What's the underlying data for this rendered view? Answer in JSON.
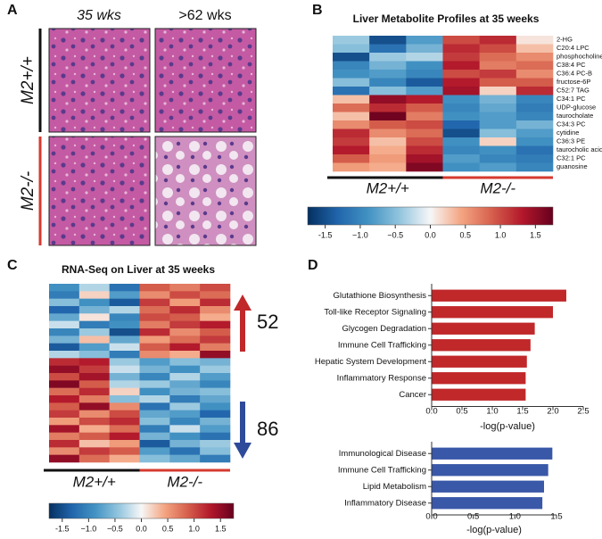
{
  "panel_a": {
    "label": "A",
    "columns": [
      "35 wks",
      ">62 wks"
    ],
    "rows": [
      {
        "name": "M2+/+",
        "color": "#111111"
      },
      {
        "name": "M2-/-",
        "color": "#d63a2f"
      }
    ]
  },
  "chart_data": [
    {
      "type": "heatmap",
      "label": "B",
      "title": "Liver Metabolite Profiles at 35 weeks",
      "rows": [
        "2-HG",
        "C20:4 LPC",
        "phosphocholine",
        "C38:4 PC",
        "C36:4 PC-B",
        "fructose-6P",
        "C52:7 TAG",
        "C34:1 PC",
        "UDP-glucose",
        "taurocholate",
        "C34:3 PC",
        "cytidine",
        "C36:3 PE",
        "taurocholic acid",
        "C32:1 PC",
        "guanosine"
      ],
      "groups": [
        {
          "name": "M2+/+",
          "color": "#111111"
        },
        {
          "name": "M2-/-",
          "color": "#d63a2f"
        }
      ],
      "values": [
        [
          -0.4,
          -1.5,
          -0.8,
          1.0,
          1.2,
          0.1
        ],
        [
          -0.5,
          -1.2,
          -0.6,
          1.2,
          1.0,
          0.3
        ],
        [
          -1.5,
          -0.4,
          -0.3,
          1.1,
          0.8,
          0.6
        ],
        [
          -1.0,
          -0.6,
          -0.9,
          1.3,
          0.7,
          0.8
        ],
        [
          -0.9,
          -0.8,
          -1.0,
          1.0,
          1.1,
          0.6
        ],
        [
          -0.5,
          -1.0,
          -1.4,
          1.3,
          0.9,
          0.9
        ],
        [
          -1.2,
          -0.5,
          -0.8,
          1.4,
          0.2,
          1.2
        ],
        [
          0.3,
          1.5,
          1.3,
          -0.9,
          -0.6,
          -1.0
        ],
        [
          0.8,
          1.2,
          0.9,
          -1.0,
          -0.7,
          -1.1
        ],
        [
          0.3,
          1.7,
          0.7,
          -0.9,
          -0.8,
          -1.0
        ],
        [
          0.6,
          0.9,
          1.0,
          -1.3,
          -0.8,
          -0.6
        ],
        [
          1.2,
          0.6,
          0.8,
          -1.5,
          -0.5,
          -0.8
        ],
        [
          1.1,
          0.3,
          1.0,
          -0.9,
          0.2,
          -0.9
        ],
        [
          1.3,
          0.4,
          1.2,
          -1.0,
          -0.9,
          -1.2
        ],
        [
          0.9,
          0.5,
          1.4,
          -0.8,
          -1.0,
          -1.1
        ],
        [
          0.5,
          0.4,
          1.6,
          -0.9,
          -0.8,
          -1.0
        ]
      ],
      "clim": [
        -1.75,
        1.75
      ],
      "colorbar_ticks": [
        -1.5,
        {
          "value": -1,
          "label": "−1.0"
        },
        {
          "value": -0.5,
          "label": "−0.5"
        },
        {
          "value": 0,
          "label": "0.0"
        },
        0.5,
        {
          "value": 1,
          "label": "1.0"
        },
        1.5
      ],
      "colors": [
        "#053061",
        "#2166ac",
        "#4393c3",
        "#92c5de",
        "#f7f7f7",
        "#f4a582",
        "#d6604d",
        "#b2182b",
        "#67001f"
      ]
    },
    {
      "type": "heatmap",
      "label": "C",
      "title": "RNA-Seq on Liver at 35 weeks",
      "groups": [
        {
          "name": "M2+/+",
          "color": "#111111"
        },
        {
          "name": "M2-/-",
          "color": "#d63a2f"
        }
      ],
      "annotations": [
        {
          "text": 52,
          "color": "#c0282a",
          "direction": "up"
        },
        {
          "text": 86,
          "color": "#2e4a9a",
          "direction": "down"
        }
      ],
      "values": [
        [
          -0.9,
          -0.3,
          -1.2,
          0.9,
          0.7,
          1.0
        ],
        [
          -1.1,
          0.2,
          -0.8,
          0.6,
          1.0,
          0.8
        ],
        [
          -0.5,
          -0.9,
          -1.4,
          1.1,
          0.5,
          1.2
        ],
        [
          -1.3,
          -0.6,
          -0.3,
          0.8,
          1.2,
          0.6
        ],
        [
          -0.7,
          0.1,
          -1.0,
          1.0,
          0.9,
          0.4
        ],
        [
          -0.2,
          -1.1,
          -0.9,
          0.7,
          1.1,
          1.3
        ],
        [
          -1.0,
          -0.4,
          -1.5,
          1.2,
          0.6,
          0.9
        ],
        [
          -0.6,
          0.3,
          -0.7,
          0.5,
          0.8,
          1.1
        ],
        [
          -1.4,
          -0.8,
          -0.2,
          0.9,
          1.3,
          0.7
        ],
        [
          -0.3,
          -0.5,
          -1.1,
          0.6,
          0.4,
          1.5
        ],
        [
          1.2,
          1.3,
          -0.4,
          -0.8,
          -0.5,
          -0.6
        ],
        [
          1.5,
          1.1,
          -0.2,
          -0.6,
          -0.9,
          -0.4
        ],
        [
          1.0,
          1.4,
          -0.6,
          -1.0,
          -0.3,
          -0.8
        ],
        [
          1.6,
          0.9,
          -0.3,
          -0.4,
          -0.7,
          -1.0
        ],
        [
          0.8,
          1.2,
          0.2,
          -0.9,
          -0.6,
          -0.5
        ],
        [
          1.3,
          0.7,
          -0.5,
          -0.3,
          -1.1,
          -0.7
        ],
        [
          0.9,
          1.5,
          0.6,
          -1.2,
          -0.4,
          -0.9
        ],
        [
          1.1,
          0.6,
          1.0,
          -0.7,
          -0.8,
          -1.3
        ],
        [
          0.5,
          1.0,
          1.2,
          -0.5,
          -1.0,
          -0.6
        ],
        [
          1.4,
          0.4,
          0.8,
          -1.1,
          -0.2,
          -0.8
        ],
        [
          0.7,
          0.9,
          1.3,
          -0.6,
          -0.9,
          -1.2
        ],
        [
          1.2,
          0.3,
          0.5,
          -1.4,
          -0.6,
          -0.4
        ],
        [
          0.6,
          1.1,
          0.9,
          -0.8,
          -1.2,
          -0.5
        ],
        [
          1.5,
          0.8,
          0.4,
          -0.5,
          -0.7,
          -1.1
        ]
      ],
      "clim": [
        -1.75,
        1.75
      ],
      "colorbar_ticks": [
        -1.5,
        {
          "value": -1,
          "label": "−1.0"
        },
        {
          "value": -0.5,
          "label": "−0.5"
        },
        {
          "value": 0,
          "label": "0.0"
        },
        0.5,
        {
          "value": 1,
          "label": "1.0"
        },
        1.5
      ],
      "colors": [
        "#053061",
        "#2166ac",
        "#4393c3",
        "#92c5de",
        "#f7f7f7",
        "#f4a582",
        "#d6604d",
        "#b2182b",
        "#67001f"
      ]
    },
    {
      "type": "hbar",
      "label": "D",
      "categories": [
        "Glutathione Biosynthesis",
        "Toll-like Receptor Signaling",
        "Glycogen Degradation",
        "Immune Cell Trafficking",
        "Hepatic System Development",
        "Inflammatory Response",
        "Cancer"
      ],
      "values": [
        2.22,
        2.0,
        1.7,
        1.63,
        1.57,
        1.55,
        1.55
      ],
      "color": "#c0282a",
      "xlim": [
        0,
        2.5
      ],
      "xticks": [
        {
          "value": 0,
          "label": "0.0"
        },
        0.5,
        {
          "value": 1,
          "label": "1.0"
        },
        1.5,
        {
          "value": 2,
          "label": "2.0"
        },
        2.5
      ],
      "xlabel": "-log(p-value)"
    },
    {
      "type": "hbar",
      "categories": [
        "Immunological Disease",
        "Immune Cell Trafficking",
        "Lipid Metabolism",
        "Inflammatory Disease"
      ],
      "values": [
        1.45,
        1.4,
        1.35,
        1.33
      ],
      "color": "#3a58a8",
      "xlim": [
        0,
        1.5
      ],
      "xticks": [
        {
          "value": 0,
          "label": "0.0"
        },
        0.5,
        {
          "value": 1,
          "label": "1.0"
        },
        1.5
      ],
      "xlabel": "-log(p-value)"
    }
  ]
}
